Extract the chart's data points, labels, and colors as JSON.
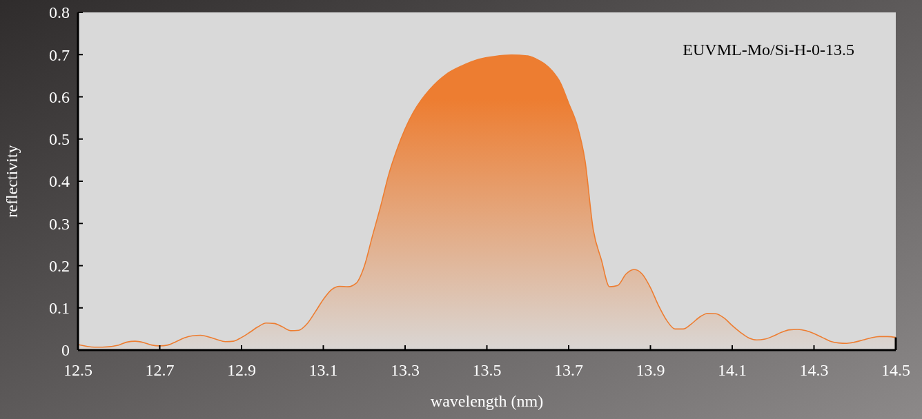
{
  "chart_data": {
    "type": "area",
    "xlabel": "wavelength (nm)",
    "ylabel": "reflectivity",
    "annotations": [
      "EUVML-Mo/Si-H-0-13.5"
    ],
    "xlim": [
      12.5,
      14.5
    ],
    "xticks": [
      12.5,
      12.7,
      12.9,
      13.1,
      13.3,
      13.5,
      13.7,
      13.9,
      14.1,
      14.3,
      14.5
    ],
    "ylim": [
      0,
      0.8
    ],
    "yticks": [
      0,
      0.1,
      0.2,
      0.3,
      0.4,
      0.5,
      0.6,
      0.7,
      0.8
    ],
    "grid": false,
    "series": [
      {
        "color": "#ed7d31",
        "x": [
          12.5,
          12.54,
          12.56,
          12.6,
          12.62,
          12.64,
          12.66,
          12.68,
          12.7,
          12.72,
          12.74,
          12.76,
          12.78,
          12.8,
          12.82,
          12.84,
          12.86,
          12.88,
          12.9,
          12.92,
          12.94,
          12.96,
          12.98,
          13.0,
          13.02,
          13.04,
          13.06,
          13.08,
          13.1,
          13.12,
          13.14,
          13.16,
          13.18,
          13.2,
          13.22,
          13.24,
          13.26,
          13.28,
          13.3,
          13.32,
          13.34,
          13.36,
          13.38,
          13.4,
          13.44,
          13.48,
          13.52,
          13.56,
          13.6,
          13.62,
          13.64,
          13.66,
          13.68,
          13.7,
          13.72,
          13.74,
          13.76,
          13.78,
          13.8,
          13.82,
          13.84,
          13.86,
          13.88,
          13.9,
          13.92,
          13.94,
          13.96,
          13.98,
          14.0,
          14.02,
          14.04,
          14.06,
          14.08,
          14.1,
          14.12,
          14.14,
          14.16,
          14.18,
          14.2,
          14.22,
          14.24,
          14.26,
          14.28,
          14.3,
          14.32,
          14.34,
          14.36,
          14.38,
          14.4,
          14.42,
          14.44,
          14.46,
          14.48,
          14.5
        ],
        "values": [
          0.013,
          0.007,
          0.007,
          0.012,
          0.019,
          0.021,
          0.018,
          0.012,
          0.01,
          0.012,
          0.02,
          0.029,
          0.034,
          0.035,
          0.031,
          0.025,
          0.02,
          0.021,
          0.03,
          0.042,
          0.055,
          0.064,
          0.063,
          0.055,
          0.046,
          0.047,
          0.062,
          0.09,
          0.12,
          0.143,
          0.151,
          0.15,
          0.158,
          0.198,
          0.27,
          0.34,
          0.416,
          0.475,
          0.524,
          0.563,
          0.593,
          0.617,
          0.637,
          0.653,
          0.674,
          0.689,
          0.696,
          0.699,
          0.697,
          0.69,
          0.679,
          0.661,
          0.633,
          0.585,
          0.535,
          0.449,
          0.286,
          0.214,
          0.15,
          0.153,
          0.18,
          0.191,
          0.18,
          0.148,
          0.105,
          0.07,
          0.05,
          0.05,
          0.062,
          0.078,
          0.087,
          0.086,
          0.076,
          0.058,
          0.042,
          0.029,
          0.024,
          0.026,
          0.033,
          0.042,
          0.048,
          0.049,
          0.046,
          0.039,
          0.03,
          0.021,
          0.017,
          0.016,
          0.019,
          0.024,
          0.029,
          0.032,
          0.032,
          0.03
        ]
      }
    ]
  }
}
